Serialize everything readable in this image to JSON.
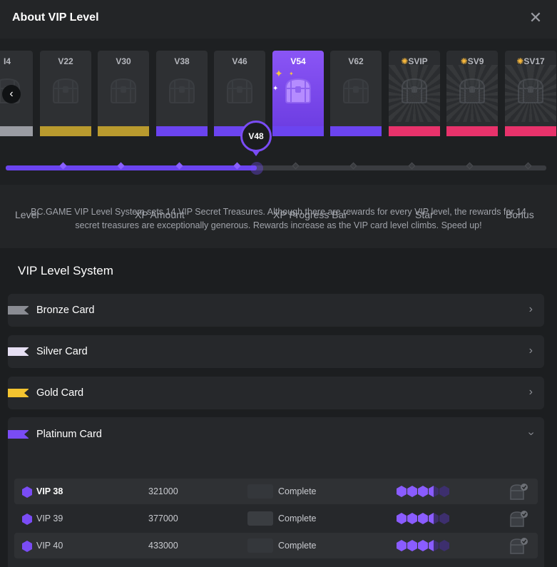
{
  "header": {
    "title": "About VIP Level",
    "close_icon": "close-icon"
  },
  "carousel": {
    "cards": [
      {
        "label": "I4",
        "band": "#9a9ca3",
        "type": "normal"
      },
      {
        "label": "V22",
        "band": "#b99a2e",
        "type": "normal"
      },
      {
        "label": "V30",
        "band": "#b99a2e",
        "type": "normal"
      },
      {
        "label": "V38",
        "band": "#6b44f0",
        "type": "normal"
      },
      {
        "label": "V46",
        "band": "#6b44f0",
        "type": "normal"
      },
      {
        "label": "V54",
        "band": "#6b44f0",
        "type": "active"
      },
      {
        "label": "V62",
        "band": "#6b44f0",
        "type": "normal"
      },
      {
        "label": "SVIP",
        "band": "#e8326b",
        "type": "svip"
      },
      {
        "label": "SV9",
        "band": "#e8326b",
        "type": "svip"
      },
      {
        "label": "SV17",
        "band": "#e8326b",
        "type": "svip"
      }
    ],
    "current_level": "V48",
    "progress_fraction": 0.465
  },
  "description": "BC.GAME VIP Level System sets 14 VIP Secret Treasures. Although there are rewards for every VIP level, the rewards for 14 secret treasures are exceptionally generous. Rewards increase as the VIP card level climbs. Speed up!",
  "system": {
    "title": "VIP Level System",
    "cards": [
      {
        "name": "Bronze Card",
        "color": "#8a8c93",
        "expanded": false
      },
      {
        "name": "Silver Card",
        "color": "#e6dff3",
        "expanded": false
      },
      {
        "name": "Gold Card",
        "color": "#f4c430",
        "expanded": false
      },
      {
        "name": "Platinum Card",
        "color": "#7a4cf5",
        "expanded": true
      }
    ]
  },
  "table": {
    "headers": [
      "Level",
      "XP Amount",
      "XP Progress Bar",
      "Star",
      "Bonus"
    ],
    "rows": [
      {
        "level": "VIP 38",
        "xp": "321000",
        "status": "Complete",
        "stars_filled": 3.5,
        "current": true
      },
      {
        "level": "VIP 39",
        "xp": "377000",
        "status": "Complete",
        "stars_filled": 3.5,
        "current": false
      },
      {
        "level": "VIP 40",
        "xp": "433000",
        "status": "Complete",
        "stars_filled": 3.5,
        "current": false
      }
    ]
  }
}
